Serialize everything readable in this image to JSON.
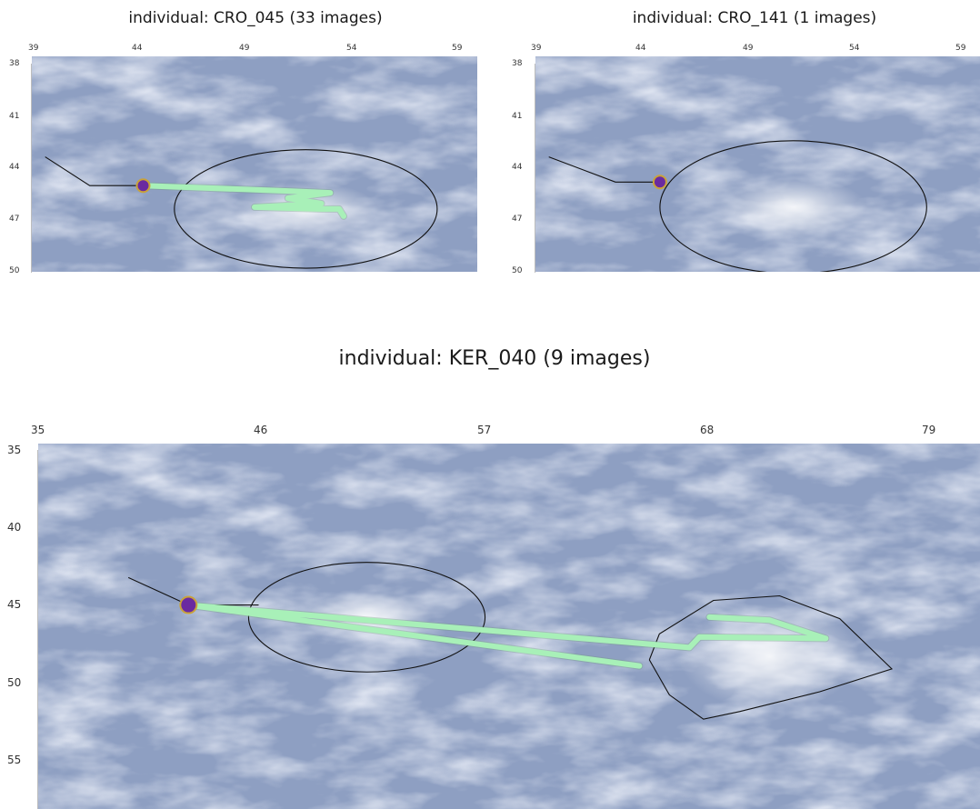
{
  "panels": [
    {
      "id": "cro045",
      "title": "individual: CRO_045 (33 images)",
      "x_ticks": [
        "39",
        "44",
        "49",
        "54",
        "59"
      ],
      "y_ticks": [
        "38",
        "41",
        "44",
        "47",
        "50"
      ],
      "lon_range": [
        39,
        59
      ],
      "lat_range": [
        38,
        50
      ],
      "marker": {
        "lon": 44,
        "lat": 45.2,
        "color": "#6a2aa0",
        "ring": "#c9a23a"
      },
      "trail_color": "#a8f0b8",
      "trail": [
        [
          44,
          45.2
        ],
        [
          50.5,
          45.5
        ],
        [
          52.4,
          45.6
        ],
        [
          50.5,
          45.9
        ],
        [
          52,
          46.2
        ],
        [
          49,
          46.4
        ],
        [
          52,
          46.5
        ],
        [
          52.8,
          46.5
        ],
        [
          53,
          46.9
        ]
      ],
      "outline_color": "#111111",
      "tether": [
        [
          39.6,
          43.6
        ],
        [
          41.6,
          45.2
        ],
        [
          44,
          45.2
        ]
      ],
      "ellipse": {
        "cx": 51.3,
        "cy": 46.5,
        "rx": 5.9,
        "ry": 3.3
      }
    },
    {
      "id": "cro141",
      "title": "individual: CRO_141 (1 images)",
      "x_ticks": [
        "39",
        "44",
        "49",
        "54",
        "59"
      ],
      "y_ticks": [
        "38",
        "41",
        "44",
        "47",
        "50"
      ],
      "lon_range": [
        39,
        59
      ],
      "lat_range": [
        38,
        50
      ],
      "marker": {
        "lon": 44.6,
        "lat": 45.0,
        "color": "#6a2aa0",
        "ring": "#c9a23a"
      },
      "trail_color": "#a8f0b8",
      "trail": [],
      "outline_color": "#111111",
      "tether": [
        [
          39.6,
          43.6
        ],
        [
          42.6,
          45.0
        ],
        [
          44.6,
          45.0
        ]
      ],
      "ellipse": {
        "cx": 50.6,
        "cy": 46.4,
        "rx": 6.0,
        "ry": 3.7
      }
    },
    {
      "id": "ker040",
      "title": "individual: KER_040 (9 images)",
      "x_ticks": [
        "35",
        "46",
        "57",
        "68",
        "79"
      ],
      "y_ticks": [
        "35",
        "40",
        "45",
        "50",
        "55"
      ],
      "lon_range": [
        35,
        82
      ],
      "lat_range": [
        35,
        59
      ],
      "marker": {
        "lon": 42.5,
        "lat": 45.6,
        "color": "#6a2aa0",
        "ring": "#c9a23a"
      },
      "trail_color": "#a8f0b8",
      "trail": [
        [
          42.5,
          45.6
        ],
        [
          65,
          49.6
        ],
        [
          42.5,
          45.6
        ],
        [
          67.5,
          48.4
        ],
        [
          68,
          47.7
        ],
        [
          74.3,
          47.8
        ],
        [
          71.5,
          46.6
        ],
        [
          68.5,
          46.4
        ]
      ],
      "outline_color": "#111111",
      "tether": [
        [
          39.5,
          43.8
        ],
        [
          41.5,
          45.0
        ],
        [
          42.5,
          45.6
        ],
        [
          46,
          45.6
        ]
      ],
      "ellipse": {
        "cx": 51.4,
        "cy": 46.4,
        "rx": 5.9,
        "ry": 3.6
      },
      "home_range": [
        [
          65.5,
          49.2
        ],
        [
          66,
          47.5
        ],
        [
          68.7,
          45.3
        ],
        [
          72,
          45.0
        ],
        [
          75,
          46.5
        ],
        [
          77.6,
          49.8
        ],
        [
          74,
          51.3
        ],
        [
          70,
          52.6
        ],
        [
          68.2,
          53.1
        ],
        [
          66.5,
          51.5
        ],
        [
          65.5,
          49.2
        ]
      ]
    }
  ]
}
